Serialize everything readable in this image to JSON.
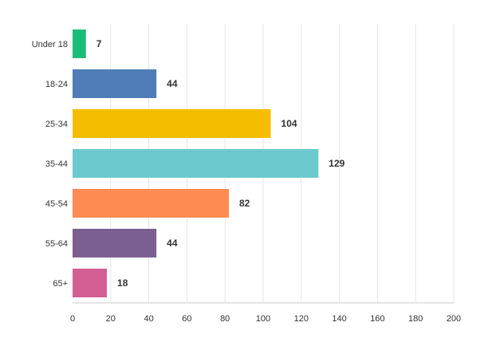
{
  "chart_data": {
    "type": "bar",
    "orientation": "horizontal",
    "categories": [
      "Under 18",
      "18-24",
      "25-34",
      "35-44",
      "45-54",
      "55-64",
      "65+"
    ],
    "values": [
      7,
      44,
      104,
      129,
      82,
      44,
      18
    ],
    "colors": [
      "#1abc78",
      "#4f7db8",
      "#f5bd00",
      "#6cc9ce",
      "#fe8b52",
      "#7c5f91",
      "#d25e94"
    ],
    "xlim": [
      0,
      200
    ],
    "xticks": [
      0,
      20,
      40,
      60,
      80,
      100,
      120,
      140,
      160,
      180,
      200
    ],
    "grid": true,
    "legend": "none"
  }
}
